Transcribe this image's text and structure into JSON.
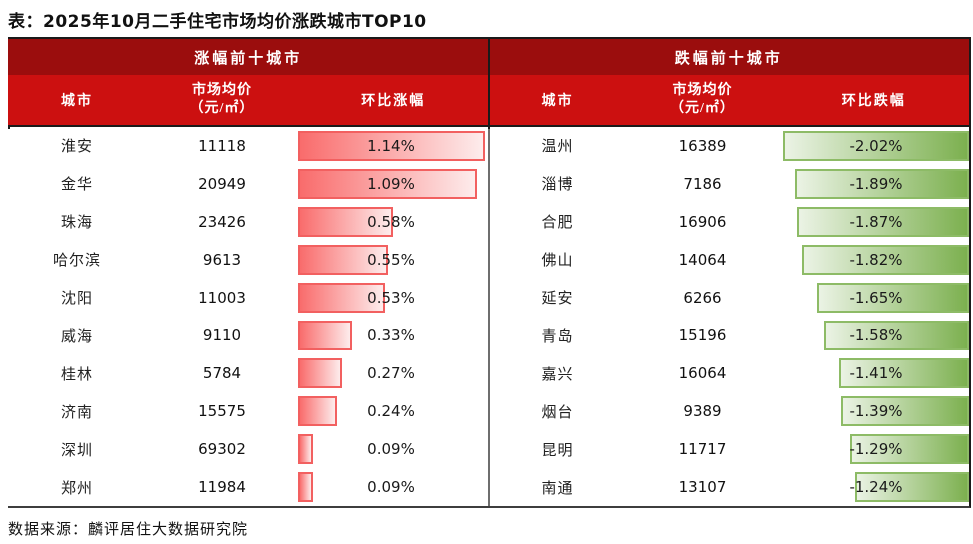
{
  "title": "表：2025年10月二手住宅市场均价涨跌城市TOP10",
  "source": "数据来源：麟评居住大数据研究院",
  "colors": {
    "header_dark_red": "#9b0d0d",
    "header_red": "#cc1010",
    "rise_bar_border": "#f26060",
    "rise_bar_gradient_start": "#f96c6c",
    "rise_bar_gradient_end": "#fdecec",
    "fall_bar_border": "#8dbb66",
    "fall_bar_gradient_start": "#ebf3e5",
    "fall_bar_gradient_end": "#7cb04f"
  },
  "left": {
    "section_title": "涨幅前十城市",
    "col_city": "城市",
    "col_price_line1": "市场均价",
    "col_price_line2": "（元/㎡）",
    "col_pct": "环比涨幅",
    "axis_max": 1.16,
    "rows": [
      {
        "city": "淮安",
        "price": "11118",
        "pct_label": "1.14%",
        "pct_value": 1.14
      },
      {
        "city": "金华",
        "price": "20949",
        "pct_label": "1.09%",
        "pct_value": 1.09
      },
      {
        "city": "珠海",
        "price": "23426",
        "pct_label": "0.58%",
        "pct_value": 0.58
      },
      {
        "city": "哈尔滨",
        "price": "9613",
        "pct_label": "0.55%",
        "pct_value": 0.55
      },
      {
        "city": "沈阳",
        "price": "11003",
        "pct_label": "0.53%",
        "pct_value": 0.53
      },
      {
        "city": "威海",
        "price": "9110",
        "pct_label": "0.33%",
        "pct_value": 0.33
      },
      {
        "city": "桂林",
        "price": "5784",
        "pct_label": "0.27%",
        "pct_value": 0.27
      },
      {
        "city": "济南",
        "price": "15575",
        "pct_label": "0.24%",
        "pct_value": 0.24
      },
      {
        "city": "深圳",
        "price": "69302",
        "pct_label": "0.09%",
        "pct_value": 0.09
      },
      {
        "city": "郑州",
        "price": "11984",
        "pct_label": "0.09%",
        "pct_value": 0.09
      }
    ]
  },
  "right": {
    "section_title": "跌幅前十城市",
    "col_city": "城市",
    "col_price_line1": "市场均价",
    "col_price_line2": "（元/㎡）",
    "col_pct": "环比跌幅",
    "axis_max": 2.07,
    "rows": [
      {
        "city": "温州",
        "price": "16389",
        "pct_label": "-2.02%",
        "pct_value": 2.02
      },
      {
        "city": "淄博",
        "price": "7186",
        "pct_label": "-1.89%",
        "pct_value": 1.89
      },
      {
        "city": "合肥",
        "price": "16906",
        "pct_label": "-1.87%",
        "pct_value": 1.87
      },
      {
        "city": "佛山",
        "price": "14064",
        "pct_label": "-1.82%",
        "pct_value": 1.82
      },
      {
        "city": "延安",
        "price": "6266",
        "pct_label": "-1.65%",
        "pct_value": 1.65
      },
      {
        "city": "青岛",
        "price": "15196",
        "pct_label": "-1.58%",
        "pct_value": 1.58
      },
      {
        "city": "嘉兴",
        "price": "16064",
        "pct_label": "-1.41%",
        "pct_value": 1.41
      },
      {
        "city": "烟台",
        "price": "9389",
        "pct_label": "-1.39%",
        "pct_value": 1.39
      },
      {
        "city": "昆明",
        "price": "11717",
        "pct_label": "-1.29%",
        "pct_value": 1.29
      },
      {
        "city": "南通",
        "price": "13107",
        "pct_label": "-1.24%",
        "pct_value": 1.24
      }
    ]
  },
  "chart_data": [
    {
      "type": "bar",
      "title": "涨幅前十城市",
      "categories": [
        "淮安",
        "金华",
        "珠海",
        "哈尔滨",
        "沈阳",
        "威海",
        "桂林",
        "济南",
        "深圳",
        "郑州"
      ],
      "series": [
        {
          "name": "市场均价（元/㎡）",
          "values": [
            11118,
            20949,
            23426,
            9613,
            11003,
            9110,
            5784,
            15575,
            69302,
            11984
          ]
        },
        {
          "name": "环比涨幅(%)",
          "values": [
            1.14,
            1.09,
            0.58,
            0.55,
            0.53,
            0.33,
            0.27,
            0.24,
            0.09,
            0.09
          ]
        }
      ],
      "xlabel": "环比涨幅",
      "xlim": [
        0,
        1.16
      ],
      "grid": false,
      "legend_position": "none",
      "orientation": "horizontal",
      "bar_anchor": "left"
    },
    {
      "type": "bar",
      "title": "跌幅前十城市",
      "categories": [
        "温州",
        "淄博",
        "合肥",
        "佛山",
        "延安",
        "青岛",
        "嘉兴",
        "烟台",
        "昆明",
        "南通"
      ],
      "series": [
        {
          "name": "市场均价（元/㎡）",
          "values": [
            16389,
            7186,
            16906,
            14064,
            6266,
            15196,
            16064,
            9389,
            11717,
            13107
          ]
        },
        {
          "name": "环比跌幅(%)",
          "values": [
            -2.02,
            -1.89,
            -1.87,
            -1.82,
            -1.65,
            -1.58,
            -1.41,
            -1.39,
            -1.29,
            -1.24
          ]
        }
      ],
      "xlabel": "环比跌幅",
      "xlim": [
        -2.07,
        0
      ],
      "grid": false,
      "legend_position": "none",
      "orientation": "horizontal",
      "bar_anchor": "right"
    }
  ]
}
